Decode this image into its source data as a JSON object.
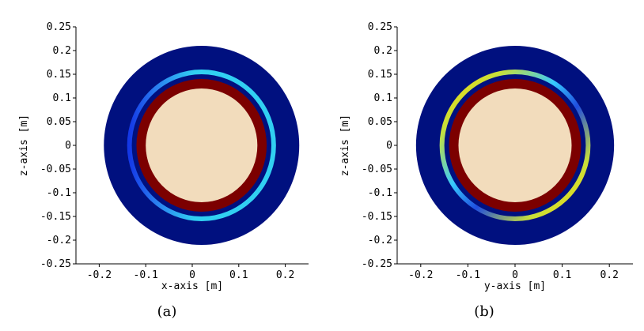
{
  "chart_data": [
    {
      "type": "heatmap",
      "panel": "(a)",
      "xlabel": "x-axis [m]",
      "ylabel": "z-axis [m]",
      "xlim": [
        -0.25,
        0.25
      ],
      "ylim": [
        -0.25,
        0.25
      ],
      "xticks": [
        -0.2,
        -0.1,
        0,
        0.1,
        0.2
      ],
      "yticks": [
        -0.25,
        -0.2,
        -0.15,
        -0.1,
        -0.05,
        0,
        0.05,
        0.1,
        0.15,
        0.2,
        0.25
      ],
      "xtick_labels": [
        "-0.2",
        "-0.1",
        "0",
        "0.1",
        "0.2"
      ],
      "ytick_labels": [
        "-0.25",
        "-0.2",
        "-0.15",
        "-0.1",
        "-0.05",
        "0",
        "0.05",
        "0.1",
        "0.15",
        "0.2",
        "0.25"
      ],
      "center": [
        0.02,
        0
      ],
      "regions": [
        {
          "name": "outer",
          "radius": 0.21,
          "color": "#00107f"
        },
        {
          "name": "ring",
          "radius": 0.155,
          "ring_width": 0.01,
          "color": "#29c8f0",
          "gradient": "cyan-blue-left"
        },
        {
          "name": "dark-red",
          "radius": 0.14,
          "color": "#7c0000"
        },
        {
          "name": "core",
          "radius": 0.12,
          "color": "#f2dcbc"
        }
      ]
    },
    {
      "type": "heatmap",
      "panel": "(b)",
      "xlabel": "y-axis [m]",
      "ylabel": "z-axis [m]",
      "xlim": [
        -0.25,
        0.25
      ],
      "ylim": [
        -0.25,
        0.25
      ],
      "xticks": [
        -0.2,
        -0.1,
        0,
        0.1,
        0.2
      ],
      "yticks": [
        -0.25,
        -0.2,
        -0.15,
        -0.1,
        -0.05,
        0,
        0.05,
        0.1,
        0.15,
        0.2,
        0.25
      ],
      "xtick_labels": [
        "-0.2",
        "-0.1",
        "0",
        "0.1",
        "0.2"
      ],
      "ytick_labels": [
        "-0.25",
        "-0.2",
        "-0.15",
        "-0.1",
        "-0.05",
        "0",
        "0.05",
        "0.1",
        "0.15",
        "0.2",
        "0.25"
      ],
      "center": [
        0,
        0
      ],
      "regions": [
        {
          "name": "outer",
          "radius": 0.21,
          "color": "#00107f"
        },
        {
          "name": "ring",
          "radius": 0.155,
          "ring_width": 0.01,
          "color": "#29c8f0",
          "gradient": "yellow-top-left-bottom-right"
        },
        {
          "name": "dark-red",
          "radius": 0.14,
          "color": "#7c0000"
        },
        {
          "name": "core",
          "radius": 0.12,
          "color": "#f2dcbc"
        }
      ]
    }
  ]
}
